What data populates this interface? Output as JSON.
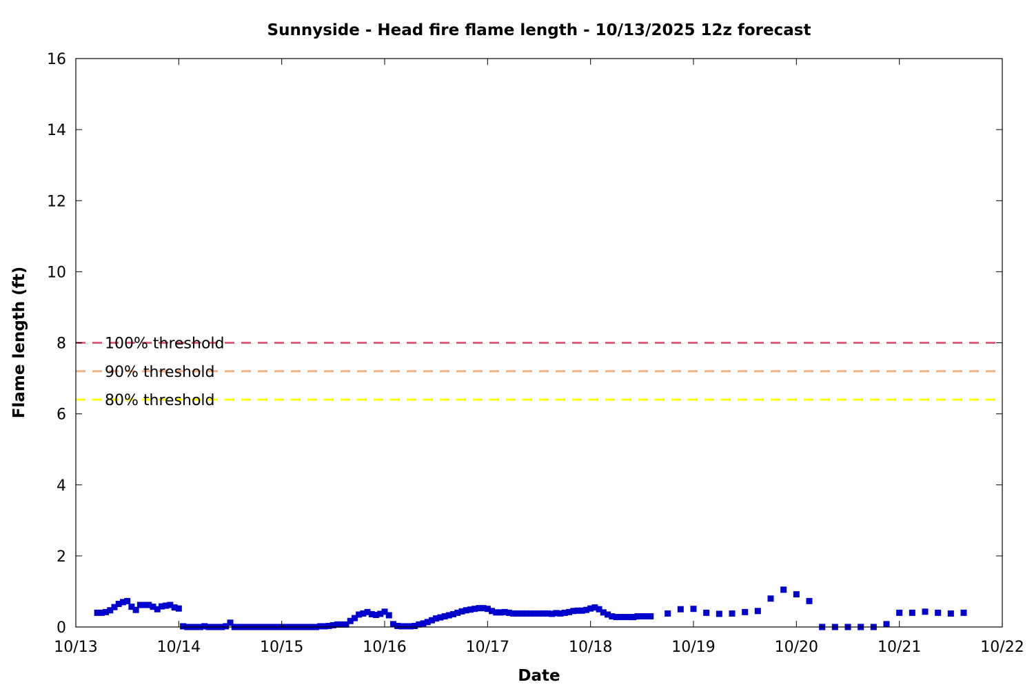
{
  "chart_data": {
    "type": "scatter",
    "title": "Sunnyside - Head fire flame length - 10/13/2025 12z forecast",
    "xlabel": "Date",
    "ylabel": "Flame length (ft)",
    "x_axis": {
      "type": "date",
      "range": [
        "10/13",
        "10/22"
      ],
      "tick_labels": [
        "10/13",
        "10/14",
        "10/15",
        "10/16",
        "10/17",
        "10/18",
        "10/19",
        "10/20",
        "10/21",
        "10/22"
      ]
    },
    "y_axis": {
      "range": [
        0,
        16
      ],
      "tick_labels": [
        "0",
        "2",
        "4",
        "6",
        "8",
        "10",
        "12",
        "14",
        "16"
      ]
    },
    "grid": false,
    "legend_placement": "left",
    "thresholds": [
      {
        "name": "100% threshold",
        "value": 8.0,
        "color": "#e0607e",
        "style": "dashed"
      },
      {
        "name": "90% threshold",
        "value": 7.2,
        "color": "#f4b183",
        "style": "dashed"
      },
      {
        "name": "80% threshold",
        "value": 6.4,
        "color": "#ffff00",
        "style": "dashed"
      }
    ],
    "series": [
      {
        "color": "#0000cc",
        "marker": "square",
        "points": [
          [
            "10/13 05:00",
            0.4
          ],
          [
            "10/13 06:00",
            0.4
          ],
          [
            "10/13 07:00",
            0.42
          ],
          [
            "10/13 08:00",
            0.47
          ],
          [
            "10/13 09:00",
            0.56
          ],
          [
            "10/13 10:00",
            0.65
          ],
          [
            "10/13 11:00",
            0.7
          ],
          [
            "10/13 12:00",
            0.73
          ],
          [
            "10/13 13:00",
            0.57
          ],
          [
            "10/13 14:00",
            0.48
          ],
          [
            "10/13 15:00",
            0.62
          ],
          [
            "10/13 16:00",
            0.62
          ],
          [
            "10/13 17:00",
            0.62
          ],
          [
            "10/13 18:00",
            0.57
          ],
          [
            "10/13 19:00",
            0.5
          ],
          [
            "10/13 20:00",
            0.58
          ],
          [
            "10/13 21:00",
            0.6
          ],
          [
            "10/13 22:00",
            0.62
          ],
          [
            "10/13 23:00",
            0.55
          ],
          [
            "10/14 00:00",
            0.52
          ],
          [
            "10/14 01:00",
            0.02
          ],
          [
            "10/14 02:00",
            0.0
          ],
          [
            "10/14 03:00",
            0.0
          ],
          [
            "10/14 04:00",
            0.0
          ],
          [
            "10/14 05:00",
            0.0
          ],
          [
            "10/14 06:00",
            0.02
          ],
          [
            "10/14 07:00",
            0.0
          ],
          [
            "10/14 08:00",
            0.0
          ],
          [
            "10/14 09:00",
            0.0
          ],
          [
            "10/14 10:00",
            0.0
          ],
          [
            "10/14 11:00",
            0.02
          ],
          [
            "10/14 12:00",
            0.12
          ],
          [
            "10/14 13:00",
            0.0
          ],
          [
            "10/14 14:00",
            0.0
          ],
          [
            "10/14 15:00",
            0.0
          ],
          [
            "10/14 16:00",
            0.0
          ],
          [
            "10/14 17:00",
            0.0
          ],
          [
            "10/14 18:00",
            0.0
          ],
          [
            "10/14 19:00",
            0.0
          ],
          [
            "10/14 20:00",
            0.0
          ],
          [
            "10/14 21:00",
            0.0
          ],
          [
            "10/14 22:00",
            0.0
          ],
          [
            "10/14 23:00",
            0.0
          ],
          [
            "10/15 00:00",
            0.0
          ],
          [
            "10/15 01:00",
            0.0
          ],
          [
            "10/15 02:00",
            0.0
          ],
          [
            "10/15 03:00",
            0.0
          ],
          [
            "10/15 04:00",
            0.0
          ],
          [
            "10/15 05:00",
            0.0
          ],
          [
            "10/15 06:00",
            0.0
          ],
          [
            "10/15 07:00",
            0.0
          ],
          [
            "10/15 08:00",
            0.0
          ],
          [
            "10/15 09:00",
            0.02
          ],
          [
            "10/15 10:00",
            0.02
          ],
          [
            "10/15 11:00",
            0.03
          ],
          [
            "10/15 12:00",
            0.05
          ],
          [
            "10/15 13:00",
            0.07
          ],
          [
            "10/15 14:00",
            0.07
          ],
          [
            "10/15 15:00",
            0.07
          ],
          [
            "10/15 16:00",
            0.17
          ],
          [
            "10/15 17:00",
            0.25
          ],
          [
            "10/15 18:00",
            0.35
          ],
          [
            "10/15 19:00",
            0.38
          ],
          [
            "10/15 20:00",
            0.42
          ],
          [
            "10/15 21:00",
            0.36
          ],
          [
            "10/15 22:00",
            0.34
          ],
          [
            "10/15 23:00",
            0.37
          ],
          [
            "10/16 00:00",
            0.43
          ],
          [
            "10/16 01:00",
            0.33
          ],
          [
            "10/16 02:00",
            0.08
          ],
          [
            "10/16 03:00",
            0.03
          ],
          [
            "10/16 04:00",
            0.02
          ],
          [
            "10/16 05:00",
            0.02
          ],
          [
            "10/16 06:00",
            0.02
          ],
          [
            "10/16 07:00",
            0.03
          ],
          [
            "10/16 08:00",
            0.07
          ],
          [
            "10/16 09:00",
            0.1
          ],
          [
            "10/16 10:00",
            0.14
          ],
          [
            "10/16 11:00",
            0.19
          ],
          [
            "10/16 12:00",
            0.24
          ],
          [
            "10/16 13:00",
            0.27
          ],
          [
            "10/16 14:00",
            0.3
          ],
          [
            "10/16 15:00",
            0.33
          ],
          [
            "10/16 16:00",
            0.36
          ],
          [
            "10/16 17:00",
            0.4
          ],
          [
            "10/16 18:00",
            0.44
          ],
          [
            "10/16 19:00",
            0.47
          ],
          [
            "10/16 20:00",
            0.49
          ],
          [
            "10/16 21:00",
            0.51
          ],
          [
            "10/16 22:00",
            0.53
          ],
          [
            "10/16 23:00",
            0.53
          ],
          [
            "10/17 00:00",
            0.51
          ],
          [
            "10/17 01:00",
            0.45
          ],
          [
            "10/17 02:00",
            0.41
          ],
          [
            "10/17 03:00",
            0.41
          ],
          [
            "10/17 04:00",
            0.42
          ],
          [
            "10/17 05:00",
            0.4
          ],
          [
            "10/17 06:00",
            0.38
          ],
          [
            "10/17 07:00",
            0.38
          ],
          [
            "10/17 08:00",
            0.38
          ],
          [
            "10/17 09:00",
            0.38
          ],
          [
            "10/17 10:00",
            0.38
          ],
          [
            "10/17 11:00",
            0.38
          ],
          [
            "10/17 12:00",
            0.38
          ],
          [
            "10/17 13:00",
            0.38
          ],
          [
            "10/17 14:00",
            0.38
          ],
          [
            "10/17 15:00",
            0.37
          ],
          [
            "10/17 16:00",
            0.39
          ],
          [
            "10/17 17:00",
            0.38
          ],
          [
            "10/17 18:00",
            0.4
          ],
          [
            "10/17 19:00",
            0.42
          ],
          [
            "10/17 20:00",
            0.45
          ],
          [
            "10/17 21:00",
            0.46
          ],
          [
            "10/17 22:00",
            0.46
          ],
          [
            "10/17 23:00",
            0.48
          ],
          [
            "10/18 00:00",
            0.52
          ],
          [
            "10/18 01:00",
            0.55
          ],
          [
            "10/18 02:00",
            0.5
          ],
          [
            "10/18 03:00",
            0.41
          ],
          [
            "10/18 04:00",
            0.35
          ],
          [
            "10/18 05:00",
            0.3
          ],
          [
            "10/18 06:00",
            0.28
          ],
          [
            "10/18 07:00",
            0.28
          ],
          [
            "10/18 08:00",
            0.28
          ],
          [
            "10/18 09:00",
            0.28
          ],
          [
            "10/18 10:00",
            0.28
          ],
          [
            "10/18 11:00",
            0.3
          ],
          [
            "10/18 12:00",
            0.3
          ],
          [
            "10/18 13:00",
            0.3
          ],
          [
            "10/18 14:00",
            0.3
          ],
          [
            "10/18 18:00",
            0.38
          ],
          [
            "10/18 21:00",
            0.5
          ],
          [
            "10/19 00:00",
            0.51
          ],
          [
            "10/19 03:00",
            0.4
          ],
          [
            "10/19 06:00",
            0.37
          ],
          [
            "10/19 09:00",
            0.38
          ],
          [
            "10/19 12:00",
            0.42
          ],
          [
            "10/19 15:00",
            0.45
          ],
          [
            "10/19 18:00",
            0.8
          ],
          [
            "10/19 21:00",
            1.05
          ],
          [
            "10/20 00:00",
            0.92
          ],
          [
            "10/20 03:00",
            0.73
          ],
          [
            "10/20 06:00",
            0.0
          ],
          [
            "10/20 09:00",
            0.0
          ],
          [
            "10/20 12:00",
            0.0
          ],
          [
            "10/20 15:00",
            0.0
          ],
          [
            "10/20 18:00",
            0.0
          ],
          [
            "10/20 21:00",
            0.08
          ],
          [
            "10/21 00:00",
            0.4
          ],
          [
            "10/21 03:00",
            0.4
          ],
          [
            "10/21 06:00",
            0.43
          ],
          [
            "10/21 09:00",
            0.4
          ],
          [
            "10/21 12:00",
            0.38
          ],
          [
            "10/21 15:00",
            0.4
          ]
        ]
      }
    ]
  }
}
